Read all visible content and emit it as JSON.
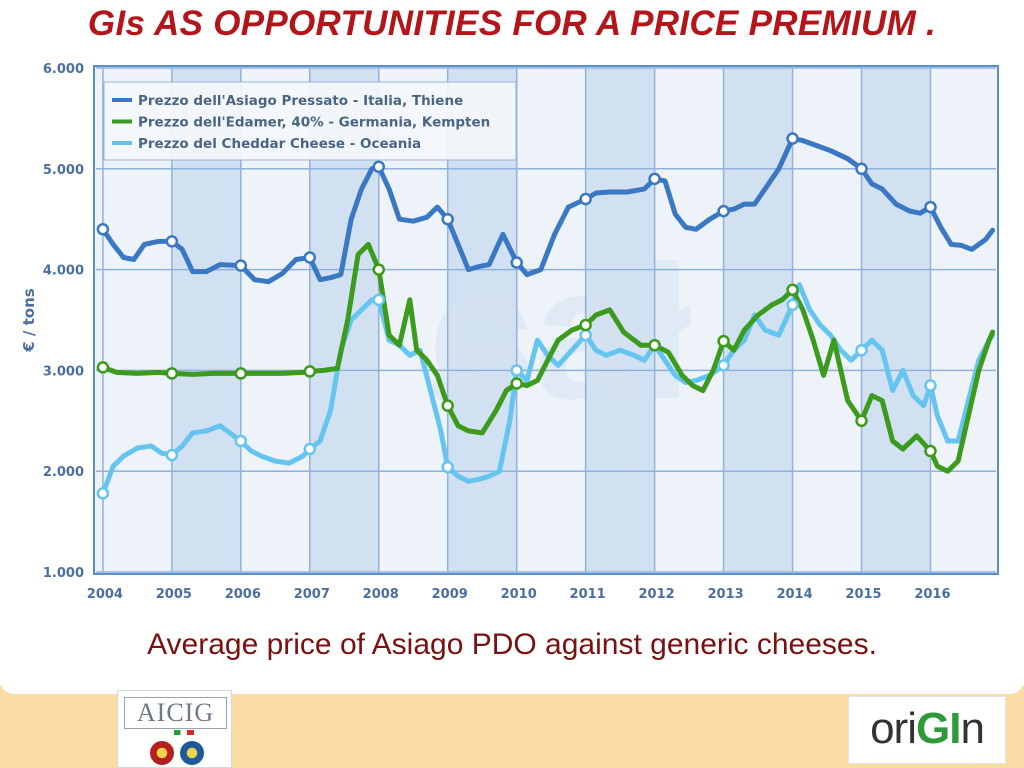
{
  "slide": {
    "title": "GIs AS OPPORTUNITIES FOR A PRICE PREMIUM .",
    "caption": "Average price of Asiago PDO against generic cheeses."
  },
  "logos": {
    "left": {
      "text": "AICIG"
    },
    "right": {
      "parts": [
        "ori",
        "GI",
        "n"
      ]
    }
  },
  "chart_data": {
    "type": "line",
    "title": "",
    "xlabel": "",
    "ylabel": "€ / tons",
    "xlim": [
      2003.9,
      2016.95
    ],
    "ylim": [
      1000,
      6000
    ],
    "grid": true,
    "legend_position": "top-left",
    "x_ticks": [
      2004,
      2005,
      2006,
      2007,
      2008,
      2009,
      2010,
      2011,
      2012,
      2013,
      2014,
      2015,
      2016
    ],
    "y_ticks": [
      1000,
      2000,
      3000,
      4000,
      5000,
      6000
    ],
    "y_tick_labels": [
      "1.000",
      "2.000",
      "3.000",
      "4.000",
      "5.000",
      "6.000"
    ],
    "series": [
      {
        "name": "Prezzo dell'Asiago Pressato - Italia, Thiene",
        "color": "#3a78c4",
        "x": [
          2004.0,
          2004.15,
          2004.3,
          2004.45,
          2004.6,
          2004.8,
          2005.0,
          2005.15,
          2005.3,
          2005.5,
          2005.7,
          2006.0,
          2006.2,
          2006.4,
          2006.6,
          2006.8,
          2007.0,
          2007.15,
          2007.3,
          2007.45,
          2007.6,
          2007.75,
          2007.9,
          2008.0,
          2008.15,
          2008.3,
          2008.5,
          2008.7,
          2008.85,
          2009.0,
          2009.15,
          2009.3,
          2009.45,
          2009.6,
          2009.8,
          2010.0,
          2010.15,
          2010.35,
          2010.55,
          2010.75,
          2011.0,
          2011.15,
          2011.35,
          2011.6,
          2011.85,
          2012.0,
          2012.15,
          2012.3,
          2012.45,
          2012.6,
          2012.8,
          2013.0,
          2013.15,
          2013.3,
          2013.45,
          2013.6,
          2013.8,
          2014.0,
          2014.15,
          2014.35,
          2014.55,
          2014.8,
          2015.0,
          2015.15,
          2015.3,
          2015.5,
          2015.7,
          2015.85,
          2016.0,
          2016.15,
          2016.3,
          2016.45,
          2016.6,
          2016.8,
          2016.9
        ],
        "values": [
          4400,
          4250,
          4120,
          4100,
          4250,
          4280,
          4280,
          4200,
          3980,
          3980,
          4050,
          4040,
          3900,
          3880,
          3960,
          4100,
          4120,
          3900,
          3920,
          3950,
          4500,
          4800,
          5000,
          5020,
          4800,
          4500,
          4480,
          4520,
          4620,
          4500,
          4250,
          4000,
          4030,
          4050,
          4350,
          4070,
          3950,
          4000,
          4350,
          4620,
          4700,
          4760,
          4770,
          4770,
          4800,
          4900,
          4880,
          4550,
          4420,
          4400,
          4500,
          4580,
          4600,
          4650,
          4650,
          4800,
          5000,
          5300,
          5280,
          5230,
          5180,
          5100,
          5000,
          4850,
          4800,
          4650,
          4580,
          4560,
          4620,
          4420,
          4250,
          4240,
          4200,
          4300,
          4390
        ],
        "markers": [
          [
            2004,
            4400
          ],
          [
            2005,
            4280
          ],
          [
            2006,
            4040
          ],
          [
            2007,
            4120
          ],
          [
            2008,
            5020
          ],
          [
            2009,
            4500
          ],
          [
            2010,
            4070
          ],
          [
            2011,
            4700
          ],
          [
            2012,
            4900
          ],
          [
            2013,
            4580
          ],
          [
            2014,
            5300
          ],
          [
            2015,
            5000
          ],
          [
            2016,
            4620
          ]
        ]
      },
      {
        "name": "Prezzo dell'Edamer, 40% - Germania, Kempten",
        "color": "#3c9a1c",
        "x": [
          2004.0,
          2004.2,
          2004.5,
          2004.8,
          2005.0,
          2005.3,
          2005.6,
          2006.0,
          2006.3,
          2006.6,
          2006.9,
          2007.0,
          2007.2,
          2007.4,
          2007.55,
          2007.7,
          2007.85,
          2008.0,
          2008.15,
          2008.3,
          2008.45,
          2008.55,
          2008.7,
          2008.85,
          2009.0,
          2009.15,
          2009.3,
          2009.5,
          2009.7,
          2009.85,
          2010.0,
          2010.15,
          2010.3,
          2010.45,
          2010.6,
          2010.8,
          2011.0,
          2011.15,
          2011.35,
          2011.55,
          2011.8,
          2012.0,
          2012.2,
          2012.4,
          2012.55,
          2012.7,
          2012.85,
          2013.0,
          2013.15,
          2013.3,
          2013.5,
          2013.7,
          2013.85,
          2014.0,
          2014.15,
          2014.3,
          2014.45,
          2014.6,
          2014.8,
          2015.0,
          2015.15,
          2015.3,
          2015.45,
          2015.6,
          2015.8,
          2016.0,
          2016.1,
          2016.25,
          2016.4,
          2016.55,
          2016.7,
          2016.85,
          2016.9
        ],
        "values": [
          3030,
          2980,
          2970,
          2980,
          2970,
          2960,
          2970,
          2970,
          2970,
          2970,
          2980,
          2990,
          3000,
          3020,
          3500,
          4150,
          4250,
          4000,
          3350,
          3250,
          3700,
          3200,
          3100,
          2950,
          2650,
          2450,
          2400,
          2380,
          2600,
          2800,
          2870,
          2850,
          2900,
          3100,
          3300,
          3400,
          3450,
          3550,
          3600,
          3380,
          3250,
          3250,
          3180,
          2950,
          2850,
          2800,
          3000,
          3290,
          3200,
          3400,
          3550,
          3650,
          3700,
          3800,
          3600,
          3300,
          2950,
          3300,
          2700,
          2500,
          2750,
          2700,
          2300,
          2220,
          2350,
          2200,
          2050,
          2000,
          2100,
          2550,
          3000,
          3300,
          3380
        ],
        "markers": [
          [
            2004,
            3030
          ],
          [
            2005,
            2970
          ],
          [
            2006,
            2970
          ],
          [
            2007,
            2990
          ],
          [
            2008,
            4000
          ],
          [
            2009,
            2650
          ],
          [
            2010,
            2870
          ],
          [
            2011,
            3450
          ],
          [
            2012,
            3250
          ],
          [
            2013,
            3290
          ],
          [
            2014,
            3800
          ],
          [
            2015,
            2500
          ],
          [
            2016,
            2200
          ]
        ]
      },
      {
        "name": "Prezzo del Cheddar Cheese - Oceania",
        "color": "#66c4f0",
        "x": [
          2004.0,
          2004.15,
          2004.3,
          2004.5,
          2004.7,
          2004.85,
          2005.0,
          2005.15,
          2005.3,
          2005.5,
          2005.7,
          2005.9,
          2006.0,
          2006.15,
          2006.3,
          2006.5,
          2006.7,
          2006.9,
          2007.0,
          2007.15,
          2007.3,
          2007.45,
          2007.6,
          2007.75,
          2007.9,
          2008.0,
          2008.15,
          2008.3,
          2008.45,
          2008.6,
          2008.75,
          2008.9,
          2009.0,
          2009.15,
          2009.3,
          2009.45,
          2009.6,
          2009.75,
          2009.9,
          2010.0,
          2010.15,
          2010.3,
          2010.45,
          2010.6,
          2010.8,
          2011.0,
          2011.15,
          2011.3,
          2011.5,
          2011.7,
          2011.85,
          2012.0,
          2012.15,
          2012.3,
          2012.45,
          2012.6,
          2012.8,
          2013.0,
          2013.15,
          2013.3,
          2013.45,
          2013.6,
          2013.8,
          2014.0,
          2014.1,
          2014.25,
          2014.4,
          2014.55,
          2014.7,
          2014.85,
          2015.0,
          2015.15,
          2015.3,
          2015.45,
          2015.6,
          2015.75,
          2015.9,
          2016.0,
          2016.1,
          2016.25,
          2016.4,
          2016.55,
          2016.7,
          2016.85,
          2016.9
        ],
        "values": [
          1780,
          2050,
          2150,
          2230,
          2250,
          2180,
          2160,
          2250,
          2380,
          2400,
          2450,
          2350,
          2300,
          2200,
          2150,
          2100,
          2080,
          2150,
          2220,
          2300,
          2600,
          3200,
          3500,
          3600,
          3700,
          3700,
          3300,
          3250,
          3150,
          3200,
          2800,
          2400,
          2040,
          1950,
          1900,
          1920,
          1950,
          2000,
          2500,
          3000,
          2900,
          3300,
          3150,
          3050,
          3200,
          3350,
          3200,
          3150,
          3200,
          3150,
          3100,
          3250,
          3100,
          2950,
          2880,
          2900,
          2950,
          3050,
          3200,
          3300,
          3550,
          3400,
          3350,
          3650,
          3850,
          3600,
          3450,
          3350,
          3200,
          3100,
          3200,
          3300,
          3200,
          2800,
          3000,
          2750,
          2650,
          2850,
          2550,
          2300,
          2300,
          2700,
          3100,
          3300,
          3350
        ],
        "markers": [
          [
            2004,
            1780
          ],
          [
            2005,
            2160
          ],
          [
            2006,
            2300
          ],
          [
            2007,
            2220
          ],
          [
            2008,
            3700
          ],
          [
            2009,
            2040
          ],
          [
            2010,
            3000
          ],
          [
            2011,
            3350
          ],
          [
            2012,
            3250
          ],
          [
            2013,
            3050
          ],
          [
            2014,
            3650
          ],
          [
            2015,
            3200
          ],
          [
            2016,
            2850
          ]
        ]
      }
    ]
  }
}
